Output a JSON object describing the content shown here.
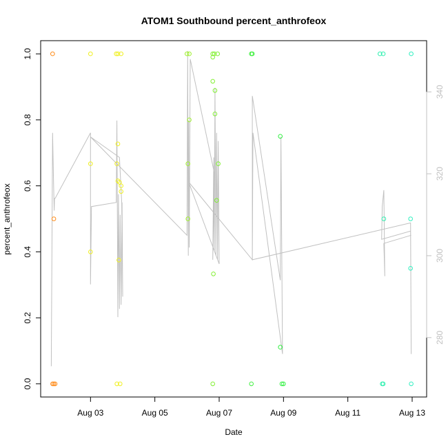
{
  "chart_data": {
    "type": "scatter",
    "title": "ATOM1 Southbound percent_anthrofeox",
    "xlabel": "Date",
    "ylabel": "percent_anthrofeox",
    "x_ticks": [
      "Aug 03",
      "Aug 05",
      "Aug 07",
      "Aug 09",
      "Aug 11",
      "Aug 13"
    ],
    "x_tick_values": [
      3,
      5,
      7,
      9,
      11,
      13
    ],
    "xlim": [
      1.45,
      13.45
    ],
    "y_ticks": [
      "0.0",
      "0.2",
      "0.4",
      "0.6",
      "0.8",
      "1.0"
    ],
    "y_tick_values": [
      0,
      0.2,
      0.4,
      0.6,
      0.8,
      1.0
    ],
    "ylim": [
      -0.04,
      1.04
    ],
    "y2_ticks": [
      "280",
      "300",
      "320",
      "340"
    ],
    "y2_tick_values": [
      280,
      300,
      320,
      340
    ],
    "y2lim": [
      265.5,
      352.5
    ],
    "grid": false,
    "points": [
      {
        "x": 1.82,
        "y": 1.0,
        "color": "#ff8c1a"
      },
      {
        "x": 1.82,
        "y": 0.0,
        "color": "#ff8c1a"
      },
      {
        "x": 1.86,
        "y": 0.0,
        "color": "#ff8c1a"
      },
      {
        "x": 1.9,
        "y": 0.0,
        "color": "#ff8c1a"
      },
      {
        "x": 1.86,
        "y": 0.5,
        "color": "#ff8c1a"
      },
      {
        "x": 3.0,
        "y": 1.0,
        "color": "#f0f020"
      },
      {
        "x": 3.0,
        "y": 0.667,
        "color": "#f0f020"
      },
      {
        "x": 3.0,
        "y": 0.4,
        "color": "#f0f020"
      },
      {
        "x": 3.8,
        "y": 1.0,
        "color": "#f0f020"
      },
      {
        "x": 3.85,
        "y": 1.0,
        "color": "#f0f020"
      },
      {
        "x": 3.95,
        "y": 1.0,
        "color": "#f0f020"
      },
      {
        "x": 3.85,
        "y": 0.727,
        "color": "#f0f020"
      },
      {
        "x": 3.82,
        "y": 0.667,
        "color": "#f0f020"
      },
      {
        "x": 3.85,
        "y": 0.615,
        "color": "#f0f020"
      },
      {
        "x": 3.9,
        "y": 0.611,
        "color": "#f0f020"
      },
      {
        "x": 3.95,
        "y": 0.6,
        "color": "#f0f020"
      },
      {
        "x": 3.95,
        "y": 0.583,
        "color": "#f0f020"
      },
      {
        "x": 3.88,
        "y": 0.375,
        "color": "#f0f020"
      },
      {
        "x": 3.82,
        "y": 0.0,
        "color": "#f0f020"
      },
      {
        "x": 3.92,
        "y": 0.0,
        "color": "#f0f020"
      },
      {
        "x": 6.0,
        "y": 1.0,
        "color": "#a0f030"
      },
      {
        "x": 6.07,
        "y": 1.0,
        "color": "#a0f030"
      },
      {
        "x": 6.07,
        "y": 0.8,
        "color": "#a0f030"
      },
      {
        "x": 6.03,
        "y": 0.667,
        "color": "#a0f030"
      },
      {
        "x": 6.03,
        "y": 0.5,
        "color": "#a0f030"
      },
      {
        "x": 6.8,
        "y": 1.0,
        "color": "#80f030"
      },
      {
        "x": 6.85,
        "y": 1.0,
        "color": "#80f030"
      },
      {
        "x": 6.95,
        "y": 1.0,
        "color": "#80f030"
      },
      {
        "x": 6.8,
        "y": 0.99,
        "color": "#80f030"
      },
      {
        "x": 6.8,
        "y": 0.917,
        "color": "#80f030"
      },
      {
        "x": 6.87,
        "y": 0.889,
        "color": "#80f030"
      },
      {
        "x": 6.87,
        "y": 0.818,
        "color": "#80f030"
      },
      {
        "x": 6.97,
        "y": 0.667,
        "color": "#80f030"
      },
      {
        "x": 6.92,
        "y": 0.556,
        "color": "#80f030"
      },
      {
        "x": 6.82,
        "y": 0.333,
        "color": "#80f030"
      },
      {
        "x": 6.8,
        "y": 0.0,
        "color": "#80f030"
      },
      {
        "x": 8.0,
        "y": 1.0,
        "color": "#40f040"
      },
      {
        "x": 8.03,
        "y": 1.0,
        "color": "#40f040"
      },
      {
        "x": 8.0,
        "y": 0.0,
        "color": "#40f040"
      },
      {
        "x": 8.9,
        "y": 0.75,
        "color": "#30f040"
      },
      {
        "x": 8.9,
        "y": 0.111,
        "color": "#30f040"
      },
      {
        "x": 8.95,
        "y": 0.0,
        "color": "#30f040"
      },
      {
        "x": 9.0,
        "y": 0.0,
        "color": "#30f040"
      },
      {
        "x": 12.0,
        "y": 1.0,
        "color": "#30f0b0"
      },
      {
        "x": 12.1,
        "y": 1.0,
        "color": "#30f0b0"
      },
      {
        "x": 12.12,
        "y": 0.5,
        "color": "#30f0b0"
      },
      {
        "x": 12.07,
        "y": 0.0,
        "color": "#30f0b0"
      },
      {
        "x": 12.1,
        "y": 0.0,
        "color": "#30f0b0"
      },
      {
        "x": 12.97,
        "y": 1.0,
        "color": "#30f0c0"
      },
      {
        "x": 12.95,
        "y": 0.5,
        "color": "#30f0c0"
      },
      {
        "x": 12.95,
        "y": 0.35,
        "color": "#30f0c0"
      },
      {
        "x": 12.97,
        "y": 0.0,
        "color": "#30f0c0"
      }
    ],
    "line_series": {
      "color": "#c0c0c0",
      "axis": "right",
      "points": [
        [
          1.78,
          273
        ],
        [
          1.82,
          330
        ],
        [
          1.85,
          318
        ],
        [
          1.87,
          311
        ],
        [
          1.88,
          314
        ],
        [
          1.9,
          314
        ],
        [
          3.0,
          330
        ],
        [
          3.0,
          293
        ],
        [
          3.03,
          312
        ],
        [
          3.8,
          313
        ],
        [
          3.82,
          333
        ],
        [
          3.85,
          285
        ],
        [
          3.87,
          315
        ],
        [
          3.9,
          287
        ],
        [
          3.92,
          310
        ],
        [
          3.95,
          288
        ],
        [
          3.98,
          313
        ],
        [
          4.0,
          290
        ],
        [
          3.97,
          313
        ],
        [
          3.9,
          324
        ],
        [
          3.0,
          329
        ],
        [
          6.0,
          305
        ],
        [
          6.02,
          350
        ],
        [
          6.04,
          300
        ],
        [
          6.05,
          333
        ],
        [
          6.07,
          302
        ],
        [
          6.1,
          348
        ],
        [
          6.8,
          322
        ],
        [
          6.85,
          320
        ],
        [
          6.8,
          299
        ],
        [
          6.83,
          324
        ],
        [
          6.85,
          301
        ],
        [
          6.87,
          341
        ],
        [
          6.9,
          300
        ],
        [
          6.92,
          330
        ],
        [
          6.95,
          299
        ],
        [
          6.97,
          328
        ],
        [
          7.0,
          298
        ],
        [
          6.05,
          318
        ],
        [
          8.03,
          299
        ],
        [
          8.03,
          339
        ],
        [
          8.9,
          294
        ],
        [
          8.92,
          329
        ],
        [
          8.97,
          276
        ],
        [
          8.05,
          330
        ],
        [
          8.03,
          299
        ],
        [
          12.95,
          308
        ],
        [
          12.97,
          276
        ],
        [
          12.95,
          306
        ],
        [
          12.05,
          304
        ],
        [
          12.07,
          312
        ],
        [
          12.12,
          316
        ],
        [
          12.15,
          295
        ],
        [
          12.12,
          303
        ],
        [
          12.97,
          305
        ]
      ]
    }
  }
}
